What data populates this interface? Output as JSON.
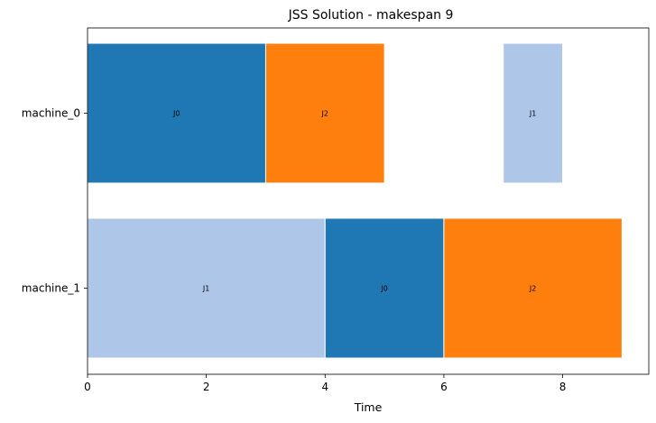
{
  "chart_data": {
    "type": "bar",
    "orientation": "horizontal-gantt",
    "title": "JSS Solution - makespan 9",
    "xlabel": "Time",
    "ylabel": "",
    "xlim": [
      0,
      9.45
    ],
    "xticks": [
      0,
      2,
      4,
      6,
      8
    ],
    "categories": [
      "machine_0",
      "machine_1"
    ],
    "grid": false,
    "colors": {
      "J0": "#1f77b4",
      "J1": "#aec7e8",
      "J2": "#ff7f0e"
    },
    "tasks": [
      {
        "machine": "machine_0",
        "job": "J0",
        "start": 0,
        "end": 3
      },
      {
        "machine": "machine_0",
        "job": "J2",
        "start": 3,
        "end": 5
      },
      {
        "machine": "machine_0",
        "job": "J1",
        "start": 7,
        "end": 8
      },
      {
        "machine": "machine_1",
        "job": "J1",
        "start": 0,
        "end": 4
      },
      {
        "machine": "machine_1",
        "job": "J0",
        "start": 4,
        "end": 6
      },
      {
        "machine": "machine_1",
        "job": "J2",
        "start": 6,
        "end": 9
      }
    ]
  }
}
